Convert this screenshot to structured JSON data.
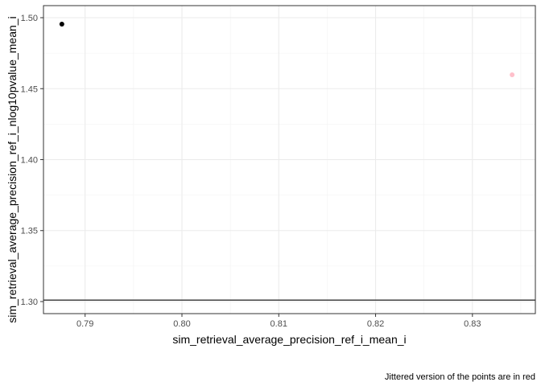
{
  "chart_data": {
    "type": "scatter",
    "xlabel": "sim_retrieval_average_precision_ref_i_mean_i",
    "ylabel": "sim_retrieval_average_precision_ref_i_nlog10pvalue_mean_i",
    "caption": "Jittered version of the points are in red",
    "xlim": [
      0.7857,
      0.8365
    ],
    "ylim": [
      1.2915,
      1.5085
    ],
    "x_ticks": [
      0.79,
      0.8,
      0.81,
      0.82,
      0.83
    ],
    "x_tick_labels": [
      "0.79",
      "0.80",
      "0.81",
      "0.82",
      "0.83"
    ],
    "y_ticks": [
      1.3,
      1.35,
      1.4,
      1.45,
      1.5
    ],
    "y_tick_labels": [
      "1.30",
      "1.35",
      "1.40",
      "1.45",
      "1.50"
    ],
    "hline": 1.30103,
    "series": [
      {
        "name": "points",
        "color": "#000000",
        "points": [
          {
            "x": 0.7876,
            "y": 1.4955
          }
        ]
      },
      {
        "name": "jittered",
        "color": "#ffc0cb",
        "points": [
          {
            "x": 0.8341,
            "y": 1.4598
          }
        ]
      }
    ],
    "grid": true
  }
}
